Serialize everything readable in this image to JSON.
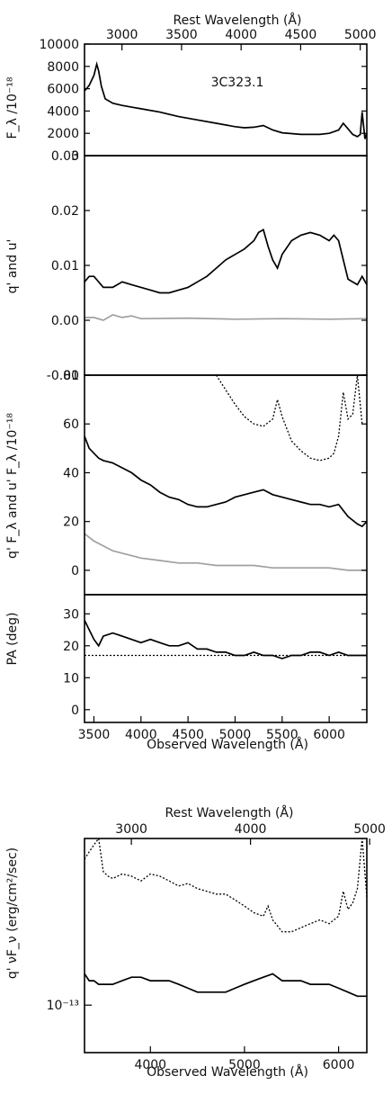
{
  "chart_data": [
    {
      "type": "line",
      "panel": "flux",
      "annotation": "3C323.1",
      "top_axis_label": "Rest Wavelength (Å)",
      "top_ticks": [
        "3000",
        "3500",
        "4000",
        "4500",
        "5000"
      ],
      "ylabel": "F_λ /10⁻¹⁸",
      "yticks": [
        "0",
        "2000",
        "4000",
        "6000",
        "8000",
        "10000"
      ],
      "xlim": [
        3400,
        6400
      ],
      "ylim": [
        0,
        10000
      ],
      "series": [
        {
          "color": "#000000",
          "x": [
            3400,
            3450,
            3500,
            3530,
            3550,
            3580,
            3620,
            3700,
            3800,
            3900,
            4000,
            4200,
            4400,
            4600,
            4800,
            5000,
            5100,
            5200,
            5300,
            5400,
            5500,
            5700,
            5900,
            6000,
            6100,
            6150,
            6200,
            6250,
            6300,
            6330,
            6350,
            6380,
            6400
          ],
          "y": [
            5800,
            6300,
            7200,
            8200,
            7600,
            6200,
            5100,
            4700,
            4500,
            4350,
            4200,
            3900,
            3500,
            3200,
            2900,
            2600,
            2500,
            2550,
            2700,
            2300,
            2050,
            1900,
            1900,
            2000,
            2300,
            2900,
            2400,
            1900,
            1700,
            1900,
            3900,
            1500,
            2000
          ]
        }
      ]
    },
    {
      "type": "line",
      "panel": "polarization",
      "ylabel": "q' and u'",
      "yticks": [
        "-0.01",
        "0.00",
        "0.01",
        "0.02",
        "0.03"
      ],
      "xlim": [
        3400,
        6400
      ],
      "ylim": [
        -0.01,
        0.03
      ],
      "series": [
        {
          "color": "#000000",
          "x": [
            3400,
            3450,
            3500,
            3550,
            3600,
            3650,
            3700,
            3800,
            3900,
            4000,
            4100,
            4200,
            4300,
            4400,
            4500,
            4600,
            4700,
            4800,
            4900,
            5000,
            5100,
            5200,
            5250,
            5300,
            5350,
            5400,
            5450,
            5500,
            5600,
            5700,
            5800,
            5900,
            6000,
            6050,
            6100,
            6200,
            6300,
            6350,
            6400
          ],
          "y": [
            0.007,
            0.008,
            0.008,
            0.007,
            0.006,
            0.006,
            0.006,
            0.007,
            0.0065,
            0.006,
            0.0055,
            0.005,
            0.005,
            0.0055,
            0.006,
            0.007,
            0.008,
            0.0095,
            0.011,
            0.012,
            0.013,
            0.0145,
            0.016,
            0.0165,
            0.0135,
            0.011,
            0.0095,
            0.012,
            0.0145,
            0.0155,
            0.016,
            0.0155,
            0.0145,
            0.0155,
            0.0145,
            0.0075,
            0.0065,
            0.008,
            0.0065
          ]
        },
        {
          "color": "#a0a0a0",
          "x": [
            3400,
            3500,
            3600,
            3700,
            3800,
            3900,
            4000,
            4500,
            5000,
            5500,
            6000,
            6400
          ],
          "y": [
            0.0005,
            0.0005,
            0.0,
            0.001,
            0.0005,
            0.0008,
            0.0003,
            0.0004,
            0.0002,
            0.0003,
            0.0002,
            0.0003
          ]
        }
      ]
    },
    {
      "type": "line",
      "panel": "polarized-flux",
      "ylabel": "q' F_λ and u' F_λ /10⁻¹⁸",
      "yticks": [
        "0",
        "20",
        "40",
        "60",
        "80"
      ],
      "xlim": [
        3400,
        6400
      ],
      "ylim": [
        -10,
        80
      ],
      "series": [
        {
          "color": "#000000",
          "x": [
            3400,
            3450,
            3500,
            3550,
            3600,
            3700,
            3800,
            3900,
            4000,
            4100,
            4200,
            4300,
            4400,
            4500,
            4600,
            4700,
            4800,
            4900,
            5000,
            5100,
            5200,
            5300,
            5400,
            5500,
            5600,
            5700,
            5800,
            5900,
            6000,
            6100,
            6200,
            6300,
            6350,
            6400
          ],
          "y": [
            55,
            50,
            48,
            46,
            45,
            44,
            42,
            40,
            37,
            35,
            32,
            30,
            29,
            27,
            26,
            26,
            27,
            28,
            30,
            31,
            32,
            33,
            31,
            30,
            29,
            28,
            27,
            27,
            26,
            27,
            22,
            19,
            18,
            20
          ]
        },
        {
          "color": "#a0a0a0",
          "x": [
            3400,
            3500,
            3600,
            3700,
            3800,
            3900,
            4000,
            4200,
            4400,
            4600,
            4800,
            5000,
            5200,
            5400,
            5600,
            5800,
            6000,
            6200,
            6400
          ],
          "y": [
            15,
            12,
            10,
            8,
            7,
            6,
            5,
            4,
            3,
            3,
            2,
            2,
            2,
            1,
            1,
            1,
            1,
            0,
            0
          ]
        },
        {
          "color": "#000000",
          "dash": "dotted",
          "x": [
            4800,
            4900,
            5000,
            5100,
            5200,
            5300,
            5400,
            5450,
            5500,
            5600,
            5700,
            5800,
            5900,
            6000,
            6050,
            6100,
            6150,
            6200,
            6250,
            6300,
            6350
          ],
          "y": [
            80,
            74,
            68,
            63,
            60,
            59,
            62,
            70,
            63,
            53,
            49,
            46,
            45,
            46,
            48,
            55,
            73,
            62,
            64,
            80,
            60
          ]
        }
      ]
    },
    {
      "type": "line",
      "panel": "position-angle",
      "ylabel": "PA (deg)",
      "yticks": [
        "0",
        "10",
        "20",
        "30"
      ],
      "xlabel": "Observed Wavelength (Å)",
      "xticks": [
        "3500",
        "4000",
        "4500",
        "5000",
        "5500",
        "6000"
      ],
      "xlim": [
        3400,
        6400
      ],
      "ylim": [
        -4,
        36
      ],
      "series": [
        {
          "color": "#000000",
          "x": [
            3400,
            3450,
            3500,
            3550,
            3600,
            3700,
            3800,
            3900,
            4000,
            4100,
            4200,
            4300,
            4400,
            4500,
            4600,
            4700,
            4800,
            4900,
            5000,
            5100,
            5200,
            5300,
            5400,
            5500,
            5600,
            5700,
            5800,
            5900,
            6000,
            6100,
            6200,
            6300,
            6400
          ],
          "y": [
            28,
            25,
            22,
            20,
            23,
            24,
            23,
            22,
            21,
            22,
            21,
            20,
            20,
            21,
            19,
            19,
            18,
            18,
            17,
            17,
            18,
            17,
            17,
            16,
            17,
            17,
            18,
            18,
            17,
            18,
            17,
            17,
            17
          ]
        },
        {
          "color": "#000000",
          "dash": "dotted",
          "x": [
            3400,
            6400
          ],
          "y": [
            17,
            17
          ]
        }
      ]
    },
    {
      "type": "line",
      "panel": "nu-F-nu",
      "top_axis_label": "Rest Wavelength (Å)",
      "top_ticks": [
        "3000",
        "4000",
        "5000"
      ],
      "ylabel": "q' νF_ν (erg/cm²/sec)",
      "ytick_label": "10⁻¹³",
      "xlabel": "Observed Wavelength (Å)",
      "xticks": [
        "4000",
        "5000",
        "6000"
      ],
      "xlim": [
        3300,
        6300
      ],
      "ylim": [
        0.6,
        6
      ],
      "yscale": "log",
      "series": [
        {
          "color": "#000000",
          "x": [
            3300,
            3350,
            3400,
            3450,
            3500,
            3600,
            3700,
            3800,
            3900,
            4000,
            4100,
            4200,
            4300,
            4400,
            4500,
            4600,
            4700,
            4800,
            4900,
            5000,
            5100,
            5200,
            5300,
            5400,
            5500,
            5600,
            5700,
            5800,
            5900,
            6000,
            6100,
            6200,
            6300
          ],
          "y": [
            1.4,
            1.3,
            1.3,
            1.25,
            1.25,
            1.25,
            1.3,
            1.35,
            1.35,
            1.3,
            1.3,
            1.3,
            1.25,
            1.2,
            1.15,
            1.15,
            1.15,
            1.15,
            1.2,
            1.25,
            1.3,
            1.35,
            1.4,
            1.3,
            1.3,
            1.3,
            1.25,
            1.25,
            1.25,
            1.2,
            1.15,
            1.1,
            1.1
          ]
        },
        {
          "color": "#000000",
          "dash": "dotted",
          "x": [
            3300,
            3350,
            3400,
            3450,
            3500,
            3550,
            3600,
            3700,
            3800,
            3900,
            4000,
            4100,
            4200,
            4300,
            4400,
            4500,
            4600,
            4700,
            4800,
            4900,
            5000,
            5100,
            5200,
            5250,
            5300,
            5400,
            5500,
            5600,
            5700,
            5800,
            5900,
            6000,
            6050,
            6100,
            6150,
            6200,
            6250,
            6300
          ],
          "y": [
            4.8,
            5.2,
            5.6,
            6,
            4.2,
            4.0,
            3.9,
            4.1,
            4.0,
            3.8,
            4.1,
            4.0,
            3.8,
            3.6,
            3.7,
            3.5,
            3.4,
            3.3,
            3.3,
            3.1,
            2.9,
            2.7,
            2.6,
            2.9,
            2.5,
            2.2,
            2.2,
            2.3,
            2.4,
            2.5,
            2.4,
            2.6,
            3.4,
            2.8,
            3.0,
            3.5,
            6,
            3.2
          ]
        }
      ]
    }
  ]
}
